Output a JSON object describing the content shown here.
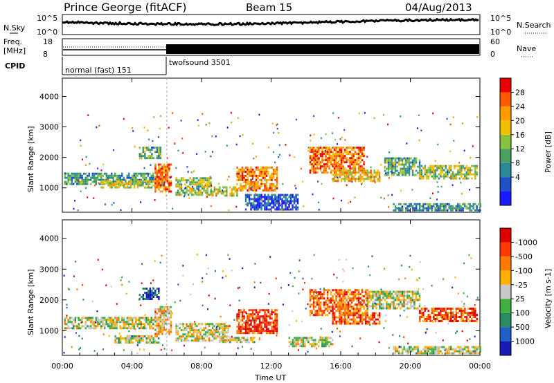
{
  "header": {
    "station": "Prince George (fitACF)",
    "beam": "Beam 15",
    "date": "04/Aug/2013"
  },
  "top_panels": {
    "nsky_label": "N.Sky",
    "nsky_ticks": [
      "10^5",
      "10^0"
    ],
    "nsearch_label": "N.Search",
    "nsearch_ticks": [
      "10^5",
      "10^0"
    ],
    "freq_label_1": "Freq.",
    "freq_label_2": "[MHz]",
    "freq_ticks": [
      "18",
      "8"
    ],
    "nave_label": "Nave",
    "nave_ticks": [
      "60",
      "0"
    ],
    "cpid_label": "CPID",
    "cpid_segments": [
      {
        "label": "normal (fast) 151",
        "start_hour": 0,
        "end_hour": 6
      },
      {
        "label": "twofsound 3501",
        "start_hour": 6,
        "end_hour": 24
      }
    ]
  },
  "chart_data": [
    {
      "type": "heatmap",
      "title": "Power",
      "ylabel": "Slant Range [km]",
      "xlabel": "",
      "xlim": [
        0,
        24
      ],
      "ylim": [
        200,
        4600
      ],
      "x_tick_labels": [
        "00:00",
        "04:00",
        "08:00",
        "12:00",
        "16:00",
        "20:00",
        "00:00"
      ],
      "y_tick_labels": [
        "1000",
        "2000",
        "3000",
        "4000"
      ],
      "colorbar": {
        "label": "Power [dB]",
        "tick_labels": [
          "4",
          "8",
          "12",
          "16",
          "20",
          "24",
          "28"
        ],
        "colors": [
          "#1a1aff",
          "#1e50c8",
          "#2a8a9a",
          "#4aa060",
          "#8ac040",
          "#f0c000",
          "#ff9a00",
          "#ff5a00",
          "#e80000"
        ]
      },
      "regions": [
        {
          "x0": 0.1,
          "x1": 5.2,
          "y0": 1150,
          "y1": 1500,
          "level": 0.35
        },
        {
          "x0": 2.2,
          "x1": 5.8,
          "y0": 1000,
          "y1": 1250,
          "level": 0.55
        },
        {
          "x0": 4.4,
          "x1": 5.6,
          "y0": 1950,
          "y1": 2350,
          "level": 0.4
        },
        {
          "x0": 5.3,
          "x1": 6.2,
          "y0": 850,
          "y1": 1800,
          "level": 0.8
        },
        {
          "x0": 6.5,
          "x1": 8.5,
          "y0": 800,
          "y1": 1350,
          "level": 0.5
        },
        {
          "x0": 8.5,
          "x1": 10.0,
          "y0": 750,
          "y1": 1050,
          "level": 0.55
        },
        {
          "x0": 10.0,
          "x1": 12.3,
          "y0": 900,
          "y1": 1700,
          "level": 0.75
        },
        {
          "x0": 10.5,
          "x1": 13.5,
          "y0": 300,
          "y1": 800,
          "level": 0.15
        },
        {
          "x0": 14.2,
          "x1": 17.3,
          "y0": 1500,
          "y1": 2350,
          "level": 0.8
        },
        {
          "x0": 15.5,
          "x1": 18.2,
          "y0": 1250,
          "y1": 1600,
          "level": 0.65
        },
        {
          "x0": 18.5,
          "x1": 20.5,
          "y0": 1450,
          "y1": 2000,
          "level": 0.4
        },
        {
          "x0": 20.5,
          "x1": 23.8,
          "y0": 1300,
          "y1": 1750,
          "level": 0.5
        },
        {
          "x0": 19.0,
          "x1": 24.0,
          "y0": 250,
          "y1": 500,
          "level": 0.3
        }
      ]
    },
    {
      "type": "heatmap",
      "title": "Velocity",
      "ylabel": "Slant Range [km]",
      "xlabel": "Time UT",
      "xlim": [
        0,
        24
      ],
      "ylim": [
        200,
        4600
      ],
      "x_tick_labels": [
        "00:00",
        "04:00",
        "08:00",
        "12:00",
        "16:00",
        "20:00",
        "00:00"
      ],
      "y_tick_labels": [
        "1000",
        "2000",
        "3000",
        "4000"
      ],
      "colorbar": {
        "label": "Velocity [m s-1]",
        "tick_labels": [
          "1000",
          "500",
          "100",
          "25",
          "-25",
          "-100",
          "-500",
          "-1000"
        ],
        "colors": [
          "#1a1ab4",
          "#1e60c8",
          "#2a8a60",
          "#40b040",
          "#c8c8c8",
          "#ffb000",
          "#ff7a00",
          "#ff3a00",
          "#e00000"
        ]
      },
      "regions": [
        {
          "x0": 0.1,
          "x1": 5.3,
          "y0": 1100,
          "y1": 1450,
          "level": 0.5
        },
        {
          "x0": 4.4,
          "x1": 5.5,
          "y0": 2000,
          "y1": 2400,
          "level": 0.15
        },
        {
          "x0": 5.3,
          "x1": 6.2,
          "y0": 900,
          "y1": 1800,
          "level": 0.6
        },
        {
          "x0": 3.0,
          "x1": 5.5,
          "y0": 600,
          "y1": 850,
          "level": 0.5
        },
        {
          "x0": 6.5,
          "x1": 9.5,
          "y0": 700,
          "y1": 1250,
          "level": 0.55
        },
        {
          "x0": 9.0,
          "x1": 11.0,
          "y0": 600,
          "y1": 800,
          "level": 0.5
        },
        {
          "x0": 10.0,
          "x1": 12.3,
          "y0": 900,
          "y1": 1700,
          "level": 0.85
        },
        {
          "x0": 14.2,
          "x1": 17.5,
          "y0": 1500,
          "y1": 2350,
          "level": 0.75
        },
        {
          "x0": 15.5,
          "x1": 18.2,
          "y0": 1250,
          "y1": 1600,
          "level": 0.8
        },
        {
          "x0": 17.5,
          "x1": 20.5,
          "y0": 1700,
          "y1": 2300,
          "level": 0.5
        },
        {
          "x0": 20.5,
          "x1": 23.8,
          "y0": 1300,
          "y1": 1750,
          "level": 0.8
        },
        {
          "x0": 19.0,
          "x1": 24.0,
          "y0": 250,
          "y1": 500,
          "level": 0.5
        },
        {
          "x0": 13.0,
          "x1": 15.5,
          "y0": 500,
          "y1": 800,
          "level": 0.5
        }
      ]
    }
  ]
}
